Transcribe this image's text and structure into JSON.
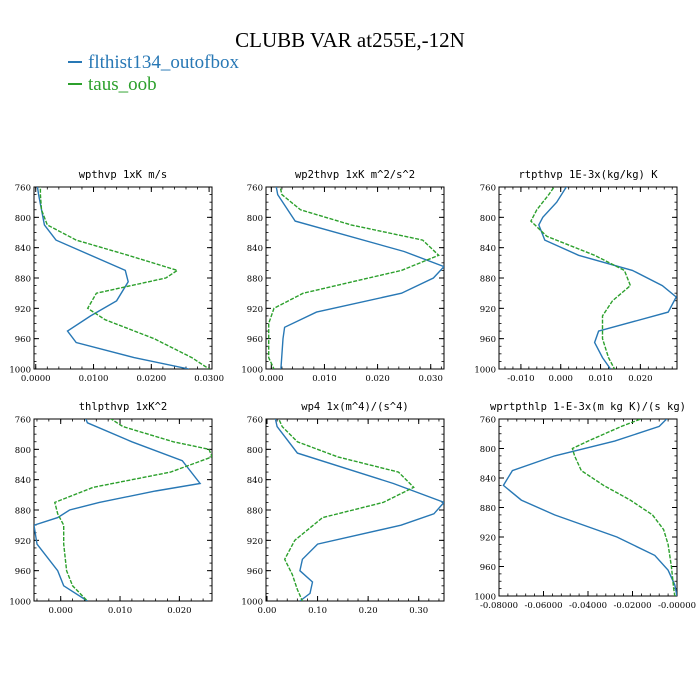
{
  "title": "CLUBB VAR at255E,-12N",
  "colors": {
    "series1": "#2878b5",
    "series2": "#2ca02c"
  },
  "legend": [
    {
      "label": "flthist134_outofbox",
      "color": "#2878b5",
      "style": "solid"
    },
    {
      "label": "taus_oob",
      "color": "#2ca02c",
      "style": "dashed"
    }
  ],
  "chart_data": [
    {
      "type": "line",
      "title": "wpthvp   1xK m/s",
      "xlim": [
        -0.0003,
        0.0305
      ],
      "ylim": [
        760,
        1000
      ],
      "y_inverted": true,
      "xticks": [
        0.0,
        0.01,
        0.02,
        0.03
      ],
      "xtick_labels": [
        "0.0000",
        "0.0100",
        "0.0200",
        "0.0300"
      ],
      "yticks": [
        760,
        800,
        840,
        880,
        920,
        960,
        1000
      ],
      "ytick_labels": [
        "760",
        "800",
        "840",
        "880",
        "920",
        "960",
        "1000"
      ],
      "series": [
        {
          "name": "flthist134_outofbox",
          "y": [
            755,
            770,
            790,
            810,
            830,
            870,
            885,
            910,
            930,
            950,
            965,
            985,
            1000
          ],
          "x": [
            0.0002,
            0.0005,
            0.001,
            0.0015,
            0.0035,
            0.0155,
            0.016,
            0.014,
            0.0095,
            0.0055,
            0.007,
            0.017,
            0.0265
          ]
        },
        {
          "name": "taus_oob",
          "y": [
            755,
            770,
            790,
            810,
            830,
            850,
            870,
            880,
            900,
            920,
            935,
            960,
            985,
            1000
          ],
          "x": [
            0.0008,
            0.0008,
            0.001,
            0.002,
            0.007,
            0.016,
            0.0245,
            0.0225,
            0.0105,
            0.009,
            0.012,
            0.0205,
            0.027,
            0.03
          ]
        }
      ]
    },
    {
      "type": "line",
      "title": "wp2thvp   1xK m^2/s^2",
      "xlim": [
        -0.001,
        0.0325
      ],
      "ylim": [
        760,
        1000
      ],
      "y_inverted": true,
      "xticks": [
        0.0,
        0.01,
        0.02,
        0.03
      ],
      "xtick_labels": [
        "0.000",
        "0.010",
        "0.020",
        "0.030"
      ],
      "yticks": [
        760,
        800,
        840,
        880,
        920,
        960,
        1000
      ],
      "ytick_labels": [
        "760",
        "800",
        "840",
        "880",
        "920",
        "960",
        "1000"
      ],
      "series": [
        {
          "name": "flthist134_outofbox",
          "y": [
            755,
            770,
            805,
            845,
            865,
            880,
            900,
            925,
            945,
            960,
            1000
          ],
          "x": [
            0.0008,
            0.0012,
            0.0045,
            0.025,
            0.0325,
            0.0305,
            0.0245,
            0.0085,
            0.0025,
            0.0022,
            0.0018
          ]
        },
        {
          "name": "taus_oob",
          "y": [
            755,
            770,
            790,
            810,
            830,
            850,
            870,
            900,
            920,
            940,
            985,
            1000
          ],
          "x": [
            0.0015,
            0.002,
            0.0055,
            0.015,
            0.0285,
            0.0315,
            0.0245,
            0.006,
            0.0005,
            -0.0005,
            -0.0005,
            0.0005
          ]
        }
      ]
    },
    {
      "type": "line",
      "title": "rtpthvp   1E-3x(kg/kg) K",
      "xlim": [
        -0.0155,
        0.0292
      ],
      "ylim": [
        760,
        1000
      ],
      "y_inverted": true,
      "xticks": [
        -0.01,
        0.0,
        0.01,
        0.02
      ],
      "xtick_labels": [
        "-0.010",
        "0.000",
        "0.010",
        "0.020"
      ],
      "yticks": [
        760,
        800,
        840,
        880,
        920,
        960,
        1000
      ],
      "ytick_labels": [
        "760",
        "800",
        "840",
        "880",
        "920",
        "960",
        "1000"
      ],
      "series": [
        {
          "name": "flthist134_outofbox",
          "y": [
            755,
            780,
            800,
            810,
            830,
            850,
            870,
            890,
            905,
            925,
            950,
            965,
            985,
            1000
          ],
          "x": [
            0.002,
            -0.001,
            -0.0045,
            -0.0055,
            -0.004,
            0.0045,
            0.018,
            0.0255,
            0.029,
            0.027,
            0.0095,
            0.0085,
            0.0105,
            0.0125
          ]
        },
        {
          "name": "taus_oob",
          "y": [
            755,
            770,
            790,
            805,
            825,
            850,
            870,
            890,
            910,
            930,
            960,
            985,
            1000
          ],
          "x": [
            -0.001,
            -0.003,
            -0.006,
            -0.0075,
            -0.0035,
            0.0085,
            0.016,
            0.0175,
            0.013,
            0.0105,
            0.0105,
            0.012,
            0.0135
          ]
        }
      ]
    },
    {
      "type": "line",
      "title": "thlpthvp   1xK^2",
      "xlim": [
        -0.0045,
        0.0255
      ],
      "ylim": [
        760,
        1000
      ],
      "y_inverted": true,
      "xticks": [
        0.0,
        0.01,
        0.02
      ],
      "xtick_labels": [
        "0.000",
        "0.010",
        "0.020"
      ],
      "yticks": [
        760,
        800,
        840,
        880,
        920,
        960,
        1000
      ],
      "ytick_labels": [
        "760",
        "800",
        "840",
        "880",
        "920",
        "960",
        "1000"
      ],
      "series": [
        {
          "name": "flthist134_outofbox",
          "y": [
            755,
            765,
            790,
            815,
            845,
            855,
            870,
            880,
            890,
            900,
            925,
            960,
            980,
            1000
          ],
          "x": [
            0.004,
            0.0045,
            0.012,
            0.0205,
            0.0235,
            0.016,
            0.0065,
            0.0015,
            -0.0005,
            -0.0045,
            -0.004,
            -0.0005,
            0.0005,
            0.0045
          ]
        },
        {
          "name": "taus_oob",
          "y": [
            755,
            770,
            790,
            800,
            810,
            830,
            850,
            870,
            885,
            900,
            925,
            960,
            980,
            1000
          ],
          "x": [
            0.0075,
            0.0105,
            0.019,
            0.025,
            0.0255,
            0.0185,
            0.0055,
            -0.001,
            -0.0005,
            0.0005,
            0.0005,
            0.001,
            0.002,
            0.0045
          ]
        }
      ]
    },
    {
      "type": "line",
      "title": "wp4   1x(m^4)/(s^4)",
      "xlim": [
        -0.002,
        0.35
      ],
      "ylim": [
        760,
        1000
      ],
      "y_inverted": true,
      "xticks": [
        0.0,
        0.1,
        0.2,
        0.3
      ],
      "xtick_labels": [
        "0.00",
        "0.10",
        "0.20",
        "0.30"
      ],
      "yticks": [
        760,
        800,
        840,
        880,
        920,
        960,
        1000
      ],
      "ytick_labels": [
        "760",
        "800",
        "840",
        "880",
        "920",
        "960",
        "1000"
      ],
      "series": [
        {
          "name": "flthist134_outofbox",
          "y": [
            755,
            770,
            805,
            845,
            870,
            885,
            900,
            925,
            945,
            960,
            975,
            990,
            1000
          ],
          "x": [
            0.015,
            0.02,
            0.06,
            0.25,
            0.35,
            0.33,
            0.265,
            0.1,
            0.07,
            0.065,
            0.09,
            0.085,
            0.065
          ]
        },
        {
          "name": "taus_oob",
          "y": [
            755,
            770,
            790,
            810,
            830,
            850,
            870,
            890,
            920,
            945,
            965,
            985,
            1000
          ],
          "x": [
            0.02,
            0.03,
            0.06,
            0.14,
            0.26,
            0.29,
            0.23,
            0.11,
            0.055,
            0.035,
            0.05,
            0.06,
            0.07
          ]
        }
      ]
    },
    {
      "type": "line",
      "title": "wprtpthlp   1-E-3x(m kg K)/(s kg)",
      "xlim": [
        -0.08,
        0.0
      ],
      "ylim": [
        760,
        1000
      ],
      "y_inverted": true,
      "xticks": [
        -0.08,
        -0.06,
        -0.04,
        -0.02,
        0.0
      ],
      "xtick_labels": [
        "-0.08000",
        "-0.06000",
        "-0.04000",
        "-0.02000",
        "-0.00000"
      ],
      "yticks": [
        760,
        800,
        840,
        880,
        920,
        960,
        1000
      ],
      "ytick_labels": [
        "760",
        "800",
        "840",
        "880",
        "920",
        "960",
        "1000"
      ],
      "series": [
        {
          "name": "flthist134_outofbox",
          "y": [
            755,
            770,
            790,
            810,
            830,
            850,
            870,
            890,
            920,
            945,
            965,
            985,
            1000
          ],
          "x": [
            -0.003,
            -0.008,
            -0.028,
            -0.055,
            -0.074,
            -0.078,
            -0.07,
            -0.055,
            -0.027,
            -0.01,
            -0.004,
            -0.001,
            0.0
          ]
        },
        {
          "name": "taus_oob",
          "y": [
            755,
            770,
            790,
            800,
            810,
            830,
            850,
            870,
            890,
            910,
            930,
            960,
            990,
            1000
          ],
          "x": [
            -0.012,
            -0.025,
            -0.04,
            -0.047,
            -0.046,
            -0.043,
            -0.033,
            -0.021,
            -0.011,
            -0.006,
            -0.004,
            -0.0025,
            -0.0015,
            -0.001
          ]
        }
      ]
    }
  ]
}
